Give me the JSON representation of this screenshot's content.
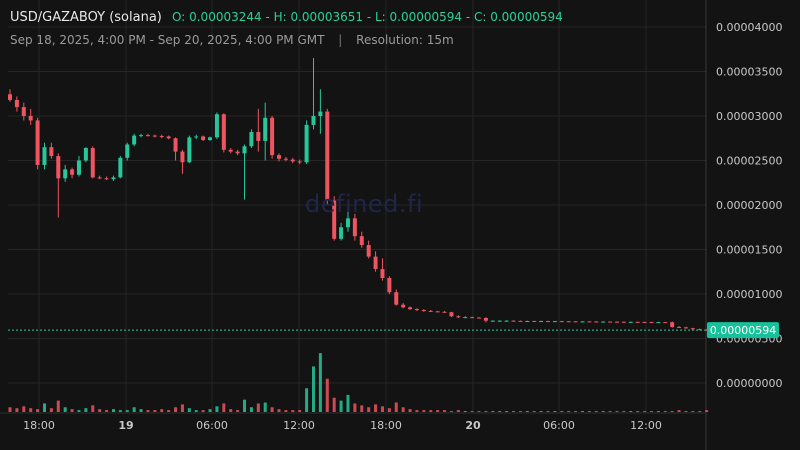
{
  "header": {
    "symbol": "USD/GAZABOY (solana)",
    "ohlc": "O: 0.00003244 - H: 0.00003651 - L: 0.00000594 - C: 0.00000594",
    "range": "Sep 18, 2025, 4:00 PM - Sep 20, 2025, 4:00 PM GMT",
    "separator": "|",
    "resolution": "Resolution: 15m"
  },
  "watermark": "defined.fi",
  "colors": {
    "background": "#131313",
    "up": "#26c79b",
    "down": "#ef5560",
    "grid": "#262626",
    "axis_text": "#c8c8c8",
    "last_price_bg": "#16c29a"
  },
  "chart_data": {
    "type": "candlestick",
    "y_axis_ticks": [
      "0.00004000",
      "0.00003500",
      "0.00003000",
      "0.00002500",
      "0.00002000",
      "0.00001500",
      "0.00001000",
      "0.00000500",
      "0.00000000"
    ],
    "x_axis_ticks": [
      {
        "label": "18:00",
        "bold": false
      },
      {
        "label": "19",
        "bold": true
      },
      {
        "label": "06:00",
        "bold": false
      },
      {
        "label": "12:00",
        "bold": false
      },
      {
        "label": "18:00",
        "bold": false
      },
      {
        "label": "20",
        "bold": true
      },
      {
        "label": "06:00",
        "bold": false
      },
      {
        "label": "12:00",
        "bold": false
      }
    ],
    "ylim": [
      3e-07,
      4.09e-05
    ],
    "last_price": "0.00000594",
    "last_price_value": 5.94e-06,
    "candles": [
      {
        "o": 3.244e-05,
        "h": 3.3e-05,
        "l": 3.16e-05,
        "c": 3.18e-05
      },
      {
        "o": 3.18e-05,
        "h": 3.22e-05,
        "l": 3.05e-05,
        "c": 3.1e-05
      },
      {
        "o": 3.1e-05,
        "h": 3.15e-05,
        "l": 2.95e-05,
        "c": 3e-05
      },
      {
        "o": 3e-05,
        "h": 3.08e-05,
        "l": 2.9e-05,
        "c": 2.95e-05
      },
      {
        "o": 2.95e-05,
        "h": 2.98e-05,
        "l": 2.4e-05,
        "c": 2.45e-05
      },
      {
        "o": 2.45e-05,
        "h": 2.7e-05,
        "l": 2.4e-05,
        "c": 2.65e-05
      },
      {
        "o": 2.65e-05,
        "h": 2.7e-05,
        "l": 2.52e-05,
        "c": 2.55e-05
      },
      {
        "o": 2.55e-05,
        "h": 2.58e-05,
        "l": 1.86e-05,
        "c": 2.3e-05
      },
      {
        "o": 2.3e-05,
        "h": 2.45e-05,
        "l": 2.26e-05,
        "c": 2.4e-05
      },
      {
        "o": 2.4e-05,
        "h": 2.42e-05,
        "l": 2.3e-05,
        "c": 2.34e-05
      },
      {
        "o": 2.34e-05,
        "h": 2.55e-05,
        "l": 2.32e-05,
        "c": 2.5e-05
      },
      {
        "o": 2.5e-05,
        "h": 2.65e-05,
        "l": 2.48e-05,
        "c": 2.64e-05
      },
      {
        "o": 2.64e-05,
        "h": 2.66e-05,
        "l": 2.3e-05,
        "c": 2.31e-05
      },
      {
        "o": 2.31e-05,
        "h": 2.33e-05,
        "l": 2.29e-05,
        "c": 2.3e-05
      },
      {
        "o": 2.3e-05,
        "h": 2.32e-05,
        "l": 2.28e-05,
        "c": 2.29e-05
      },
      {
        "o": 2.29e-05,
        "h": 2.33e-05,
        "l": 2.27e-05,
        "c": 2.31e-05
      },
      {
        "o": 2.31e-05,
        "h": 2.55e-05,
        "l": 2.3e-05,
        "c": 2.53e-05
      },
      {
        "o": 2.53e-05,
        "h": 2.7e-05,
        "l": 2.5e-05,
        "c": 2.68e-05
      },
      {
        "o": 2.68e-05,
        "h": 2.8e-05,
        "l": 2.66e-05,
        "c": 2.78e-05
      },
      {
        "o": 2.78e-05,
        "h": 2.8e-05,
        "l": 2.76e-05,
        "c": 2.785e-05
      },
      {
        "o": 2.785e-05,
        "h": 2.8e-05,
        "l": 2.77e-05,
        "c": 2.78e-05
      },
      {
        "o": 2.78e-05,
        "h": 2.79e-05,
        "l": 2.76e-05,
        "c": 2.775e-05
      },
      {
        "o": 2.775e-05,
        "h": 2.79e-05,
        "l": 2.75e-05,
        "c": 2.77e-05
      },
      {
        "o": 2.77e-05,
        "h": 2.78e-05,
        "l": 2.74e-05,
        "c": 2.75e-05
      },
      {
        "o": 2.75e-05,
        "h": 2.76e-05,
        "l": 2.5e-05,
        "c": 2.6e-05
      },
      {
        "o": 2.6e-05,
        "h": 2.62e-05,
        "l": 2.35e-05,
        "c": 2.48e-05
      },
      {
        "o": 2.48e-05,
        "h": 2.78e-05,
        "l": 2.47e-05,
        "c": 2.76e-05
      },
      {
        "o": 2.76e-05,
        "h": 2.79e-05,
        "l": 2.74e-05,
        "c": 2.77e-05
      },
      {
        "o": 2.77e-05,
        "h": 2.78e-05,
        "l": 2.72e-05,
        "c": 2.73e-05
      },
      {
        "o": 2.73e-05,
        "h": 2.77e-05,
        "l": 2.72e-05,
        "c": 2.76e-05
      },
      {
        "o": 2.76e-05,
        "h": 3.04e-05,
        "l": 2.74e-05,
        "c": 3.02e-05
      },
      {
        "o": 3.02e-05,
        "h": 3.03e-05,
        "l": 2.59e-05,
        "c": 2.62e-05
      },
      {
        "o": 2.62e-05,
        "h": 2.64e-05,
        "l": 2.58e-05,
        "c": 2.6e-05
      },
      {
        "o": 2.6e-05,
        "h": 2.62e-05,
        "l": 2.56e-05,
        "c": 2.58e-05
      },
      {
        "o": 2.58e-05,
        "h": 2.68e-05,
        "l": 2.06e-05,
        "c": 2.66e-05
      },
      {
        "o": 2.66e-05,
        "h": 2.85e-05,
        "l": 2.64e-05,
        "c": 2.82e-05
      },
      {
        "o": 2.82e-05,
        "h": 3.08e-05,
        "l": 2.6e-05,
        "c": 2.72e-05
      },
      {
        "o": 2.72e-05,
        "h": 3.15e-05,
        "l": 2.5e-05,
        "c": 2.98e-05
      },
      {
        "o": 2.98e-05,
        "h": 3e-05,
        "l": 2.52e-05,
        "c": 2.56e-05
      },
      {
        "o": 2.56e-05,
        "h": 2.58e-05,
        "l": 2.49e-05,
        "c": 2.52e-05
      },
      {
        "o": 2.52e-05,
        "h": 2.54e-05,
        "l": 2.49e-05,
        "c": 2.51e-05
      },
      {
        "o": 2.51e-05,
        "h": 2.53e-05,
        "l": 2.47e-05,
        "c": 2.49e-05
      },
      {
        "o": 2.49e-05,
        "h": 2.51e-05,
        "l": 2.46e-05,
        "c": 2.48e-05
      },
      {
        "o": 2.48e-05,
        "h": 2.95e-05,
        "l": 2.46e-05,
        "c": 2.9e-05
      },
      {
        "o": 2.9e-05,
        "h": 3.651e-05,
        "l": 2.85e-05,
        "c": 3e-05
      },
      {
        "o": 3e-05,
        "h": 3.3e-05,
        "l": 2.8e-05,
        "c": 3.05e-05
      },
      {
        "o": 3.05e-05,
        "h": 3.08e-05,
        "l": 2e-05,
        "c": 2.05e-05
      },
      {
        "o": 2.05e-05,
        "h": 2.1e-05,
        "l": 1.6e-05,
        "c": 1.62e-05
      },
      {
        "o": 1.62e-05,
        "h": 1.8e-05,
        "l": 1.6e-05,
        "c": 1.75e-05
      },
      {
        "o": 1.75e-05,
        "h": 2e-05,
        "l": 1.7e-05,
        "c": 1.85e-05
      },
      {
        "o": 1.85e-05,
        "h": 1.9e-05,
        "l": 1.6e-05,
        "c": 1.65e-05
      },
      {
        "o": 1.65e-05,
        "h": 1.7e-05,
        "l": 1.52e-05,
        "c": 1.55e-05
      },
      {
        "o": 1.55e-05,
        "h": 1.6e-05,
        "l": 1.4e-05,
        "c": 1.42e-05
      },
      {
        "o": 1.42e-05,
        "h": 1.48e-05,
        "l": 1.25e-05,
        "c": 1.28e-05
      },
      {
        "o": 1.28e-05,
        "h": 1.4e-05,
        "l": 1.15e-05,
        "c": 1.18e-05
      },
      {
        "o": 1.18e-05,
        "h": 1.2e-05,
        "l": 1e-05,
        "c": 1.02e-05
      },
      {
        "o": 1.02e-05,
        "h": 1.05e-05,
        "l": 8.7e-06,
        "c": 8.8e-06
      },
      {
        "o": 8.8e-06,
        "h": 9e-06,
        "l": 8.4e-06,
        "c": 8.5e-06
      },
      {
        "o": 8.5e-06,
        "h": 8.6e-06,
        "l": 8.2e-06,
        "c": 8.3e-06
      },
      {
        "o": 8.3e-06,
        "h": 8.4e-06,
        "l": 8.1e-06,
        "c": 8.2e-06
      },
      {
        "o": 8.2e-06,
        "h": 8.3e-06,
        "l": 8e-06,
        "c": 8.1e-06
      },
      {
        "o": 8.1e-06,
        "h": 8.2e-06,
        "l": 8e-06,
        "c": 8.05e-06
      },
      {
        "o": 8.05e-06,
        "h": 8.1e-06,
        "l": 7.95e-06,
        "c": 8e-06
      },
      {
        "o": 8e-06,
        "h": 8.1e-06,
        "l": 7.9e-06,
        "c": 7.95e-06
      },
      {
        "o": 7.95e-06,
        "h": 8e-06,
        "l": 7.4e-06,
        "c": 7.5e-06
      },
      {
        "o": 7.5e-06,
        "h": 7.6e-06,
        "l": 7.3e-06,
        "c": 7.4e-06
      },
      {
        "o": 7.4e-06,
        "h": 7.5e-06,
        "l": 7.3e-06,
        "c": 7.4e-06
      },
      {
        "o": 7.4e-06,
        "h": 7.45e-06,
        "l": 7.3e-06,
        "c": 7.35e-06
      },
      {
        "o": 7.35e-06,
        "h": 7.4e-06,
        "l": 7.25e-06,
        "c": 7.3e-06
      },
      {
        "o": 7.3e-06,
        "h": 7.4e-06,
        "l": 6.8e-06,
        "c": 7e-06
      },
      {
        "o": 7e-06,
        "h": 7.05e-06,
        "l": 6.9e-06,
        "c": 7e-06
      },
      {
        "o": 7e-06,
        "h": 7.05e-06,
        "l": 6.95e-06,
        "c": 7e-06
      },
      {
        "o": 7e-06,
        "h": 7.05e-06,
        "l": 6.95e-06,
        "c": 7e-06
      },
      {
        "o": 7e-06,
        "h": 7.05e-06,
        "l": 6.95e-06,
        "c": 6.98e-06
      },
      {
        "o": 6.98e-06,
        "h": 7.02e-06,
        "l": 6.94e-06,
        "c": 6.97e-06
      },
      {
        "o": 6.97e-06,
        "h": 7e-06,
        "l": 6.94e-06,
        "c": 6.97e-06
      },
      {
        "o": 6.97e-06,
        "h": 7e-06,
        "l": 6.94e-06,
        "c": 6.96e-06
      },
      {
        "o": 6.96e-06,
        "h": 7e-06,
        "l": 6.93e-06,
        "c": 6.96e-06
      },
      {
        "o": 6.96e-06,
        "h": 6.99e-06,
        "l": 6.92e-06,
        "c": 6.95e-06
      },
      {
        "o": 6.95e-06,
        "h": 6.98e-06,
        "l": 6.92e-06,
        "c": 6.95e-06
      },
      {
        "o": 6.95e-06,
        "h": 6.98e-06,
        "l": 6.91e-06,
        "c": 6.94e-06
      },
      {
        "o": 6.94e-06,
        "h": 6.97e-06,
        "l": 6.9e-06,
        "c": 6.93e-06
      },
      {
        "o": 6.93e-06,
        "h": 6.96e-06,
        "l": 6.9e-06,
        "c": 6.92e-06
      },
      {
        "o": 6.92e-06,
        "h": 6.95e-06,
        "l": 6.89e-06,
        "c": 6.92e-06
      },
      {
        "o": 6.92e-06,
        "h": 6.95e-06,
        "l": 6.88e-06,
        "c": 6.91e-06
      },
      {
        "o": 6.91e-06,
        "h": 6.94e-06,
        "l": 6.88e-06,
        "c": 6.9e-06
      },
      {
        "o": 6.9e-06,
        "h": 6.93e-06,
        "l": 6.87e-06,
        "c": 6.9e-06
      },
      {
        "o": 6.9e-06,
        "h": 6.92e-06,
        "l": 6.86e-06,
        "c": 6.89e-06
      },
      {
        "o": 6.89e-06,
        "h": 6.92e-06,
        "l": 6.85e-06,
        "c": 6.88e-06
      },
      {
        "o": 6.88e-06,
        "h": 6.91e-06,
        "l": 6.85e-06,
        "c": 6.87e-06
      },
      {
        "o": 6.87e-06,
        "h": 6.9e-06,
        "l": 6.84e-06,
        "c": 6.87e-06
      },
      {
        "o": 6.87e-06,
        "h": 6.89e-06,
        "l": 6.83e-06,
        "c": 6.86e-06
      },
      {
        "o": 6.86e-06,
        "h": 6.88e-06,
        "l": 6.82e-06,
        "c": 6.85e-06
      },
      {
        "o": 6.85e-06,
        "h": 6.88e-06,
        "l": 6.82e-06,
        "c": 6.84e-06
      },
      {
        "o": 6.84e-06,
        "h": 6.87e-06,
        "l": 6.81e-06,
        "c": 6.84e-06
      },
      {
        "o": 6.84e-06,
        "h": 6.86e-06,
        "l": 6.8e-06,
        "c": 6.83e-06
      },
      {
        "o": 6.83e-06,
        "h": 6.9e-06,
        "l": 6.2e-06,
        "c": 6.3e-06
      },
      {
        "o": 6.3e-06,
        "h": 6.4e-06,
        "l": 6.2e-06,
        "c": 6.25e-06
      },
      {
        "o": 6.25e-06,
        "h": 6.32e-06,
        "l": 6.1e-06,
        "c": 6.15e-06
      },
      {
        "o": 6.15e-06,
        "h": 6.2e-06,
        "l": 6e-06,
        "c": 6.05e-06
      },
      {
        "o": 6.05e-06,
        "h": 6.12e-06,
        "l": 5.98e-06,
        "c": 6e-06
      },
      {
        "o": 6e-06,
        "h": 6.05e-06,
        "l": 5.94e-06,
        "c": 5.94e-06
      }
    ],
    "volumes": [
      0.05,
      0.04,
      0.06,
      0.04,
      0.03,
      0.09,
      0.04,
      0.12,
      0.05,
      0.03,
      0.02,
      0.04,
      0.07,
      0.03,
      0.02,
      0.03,
      0.02,
      0.02,
      0.05,
      0.03,
      0.02,
      0.02,
      0.03,
      0.02,
      0.05,
      0.08,
      0.04,
      0.02,
      0.02,
      0.03,
      0.06,
      0.09,
      0.03,
      0.02,
      0.13,
      0.05,
      0.09,
      0.1,
      0.05,
      0.03,
      0.02,
      0.02,
      0.02,
      0.25,
      0.48,
      0.62,
      0.35,
      0.15,
      0.12,
      0.18,
      0.09,
      0.07,
      0.05,
      0.08,
      0.06,
      0.04,
      0.1,
      0.05,
      0.03,
      0.02,
      0.02,
      0.02,
      0.02,
      0.02,
      0.01,
      0.02,
      0.01,
      0.01,
      0.01,
      0.01,
      0.01,
      0.01,
      0.01,
      0.01,
      0.01,
      0.01,
      0.01,
      0.01,
      0.01,
      0.01,
      0.01,
      0.01,
      0.01,
      0.01,
      0.01,
      0.01,
      0.01,
      0.01,
      0.01,
      0.01,
      0.01,
      0.01,
      0.01,
      0.01,
      0.01,
      0.01,
      0.01,
      0.02,
      0.01,
      0.01,
      0.01,
      0.02,
      0.01
    ]
  }
}
